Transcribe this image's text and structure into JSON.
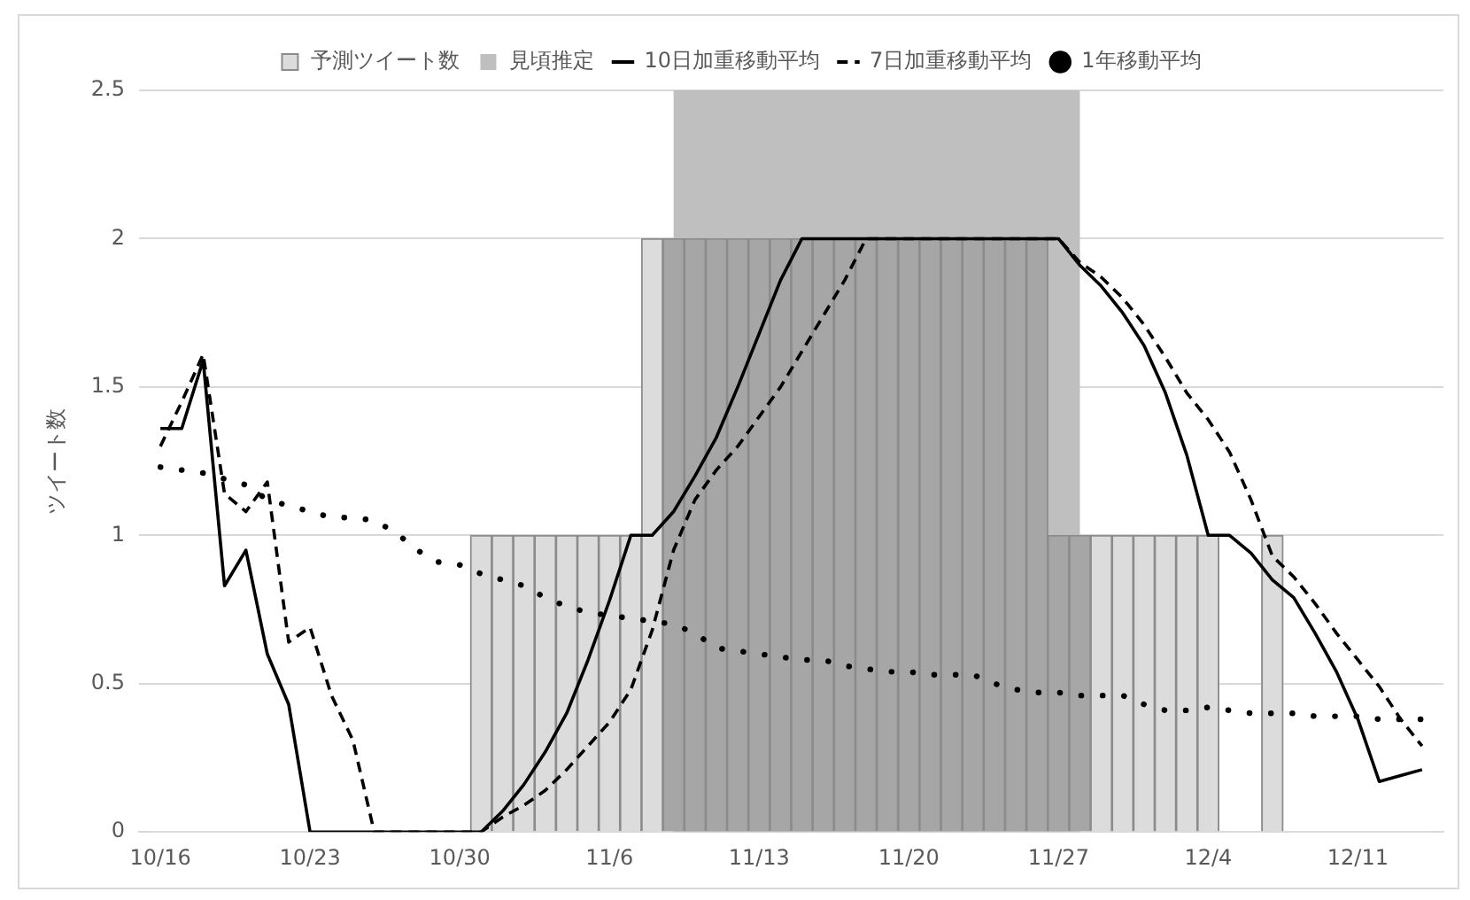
{
  "chart_data": {
    "type": "bar",
    "ylabel": "ツイート数",
    "x": [
      "--10-16",
      "--10-17",
      "--10-18",
      "--10-19",
      "--10-20",
      "--10-21",
      "--10-22",
      "--10-23",
      "--10-24",
      "--10-25",
      "--10-26",
      "--10-27",
      "--10-28",
      "--10-29",
      "--10-30",
      "--10-31",
      "--11-01",
      "--11-02",
      "--11-03",
      "--11-04",
      "--11-05",
      "--11-06",
      "--11-07",
      "--11-08",
      "--11-09",
      "--11-10",
      "--11-11",
      "--11-12",
      "--11-13",
      "--11-14",
      "--11-15",
      "--11-16",
      "--11-17",
      "--11-18",
      "--11-19",
      "--11-20",
      "--11-21",
      "--11-22",
      "--11-23",
      "--11-24",
      "--11-25",
      "--11-26",
      "--11-27",
      "--11-28",
      "--11-29",
      "--11-30",
      "--12-01",
      "--12-02",
      "--12-03",
      "--12-04",
      "--12-05",
      "--12-06",
      "--12-07",
      "--12-08",
      "--12-09",
      "--12-10",
      "--12-11",
      "--12-12",
      "--12-13",
      "--12-14"
    ],
    "xlim": [
      "--10-15",
      "--12-15"
    ],
    "xticks": [
      {
        "value": "--10-16",
        "label": "10/16"
      },
      {
        "value": "--10-23",
        "label": "10/23"
      },
      {
        "value": "--10-30",
        "label": "10/30"
      },
      {
        "value": "--11-06",
        "label": "11/6"
      },
      {
        "value": "--11-13",
        "label": "11/13"
      },
      {
        "value": "--11-20",
        "label": "11/20"
      },
      {
        "value": "--11-27",
        "label": "11/27"
      },
      {
        "value": "--12-04",
        "label": "12/4"
      },
      {
        "value": "--12-11",
        "label": "12/11"
      }
    ],
    "series": [
      {
        "name": "予測ツイート数",
        "colors": [
          "#dcdcdc",
          "#dcdcdc",
          "#dcdcdc",
          "#dcdcdc",
          "#dcdcdc",
          "#dcdcdc",
          "#dcdcdc",
          "#dcdcdc",
          "#dcdcdc",
          "#dcdcdc",
          "#dcdcdc",
          "#dcdcdc",
          "#dcdcdc",
          "#dcdcdc",
          "#dcdcdc",
          "#dcdcdc",
          "#dcdcdc",
          "#dcdcdc",
          "#dcdcdc",
          "#dcdcdc",
          "#dcdcdc",
          "#dcdcdc",
          "#dcdcdc",
          "#dcdcdc",
          "#a6a6a6",
          "#a6a6a6",
          "#a6a6a6",
          "#a6a6a6",
          "#a6a6a6",
          "#a6a6a6",
          "#a6a6a6",
          "#a6a6a6",
          "#a6a6a6",
          "#a6a6a6",
          "#a6a6a6",
          "#a6a6a6",
          "#a6a6a6",
          "#a6a6a6",
          "#a6a6a6",
          "#a6a6a6",
          "#a6a6a6",
          "#a6a6a6",
          "#a6a6a6",
          "#a6a6a6",
          "#dcdcdc",
          "#dcdcdc",
          "#dcdcdc",
          "#dcdcdc",
          "#dcdcdc",
          "#dcdcdc",
          "#dcdcdc",
          "#dcdcdc",
          "#dcdcdc",
          "#dcdcdc",
          "#dcdcdc",
          "#dcdcdc",
          "#dcdcdc",
          "#dcdcdc",
          "#dcdcdc",
          "#dcdcdc"
        ],
        "values": [
          0,
          0,
          0,
          0,
          0,
          0,
          0,
          0,
          0,
          0,
          0,
          0,
          0,
          0,
          0,
          1,
          1,
          1,
          1,
          1,
          1,
          1,
          1,
          2,
          2,
          2,
          2,
          2,
          2,
          2,
          2,
          2,
          2,
          2,
          2,
          2,
          2,
          2,
          2,
          2,
          2,
          2,
          1,
          1,
          1,
          1,
          1,
          1,
          1,
          1,
          0,
          0,
          1,
          0,
          0,
          0,
          0,
          0,
          0,
          0
        ]
      },
      {
        "name": "10日加重移動平均",
        "type": "line",
        "color": "#000000",
        "line_style": "solid",
        "values": [
          1.36,
          1.36,
          1.59,
          0.83,
          0.95,
          0.6,
          0.43,
          0,
          0,
          0,
          0,
          0,
          0,
          0,
          0,
          0,
          0.07,
          0.16,
          0.27,
          0.4,
          0.58,
          0.78,
          1.0,
          1.0,
          1.08,
          1.2,
          1.33,
          1.5,
          1.68,
          1.86,
          2.0,
          2.0,
          2.0,
          2.0,
          2.0,
          2.0,
          2.0,
          2.0,
          2.0,
          2.0,
          2.0,
          2.0,
          2.0,
          1.91,
          1.84,
          1.75,
          1.64,
          1.48,
          1.27,
          1.0,
          1.0,
          0.94,
          0.85,
          0.79,
          0.67,
          0.54,
          0.38,
          0.17,
          0.19,
          0.21
        ]
      },
      {
        "name": "7日加重移動平均",
        "type": "line",
        "color": "#000000",
        "line_style": "dashed",
        "values": [
          1.3,
          1.45,
          1.61,
          1.14,
          1.08,
          1.18,
          0.64,
          0.69,
          0.46,
          0.31,
          0,
          0,
          0,
          0,
          0,
          0,
          0.05,
          0.09,
          0.14,
          0.21,
          0.29,
          0.37,
          0.48,
          0.68,
          0.95,
          1.12,
          1.22,
          1.3,
          1.4,
          1.5,
          1.62,
          1.74,
          1.86,
          2.0,
          2.0,
          2.0,
          2.0,
          2.0,
          2.0,
          2.0,
          2.0,
          2.0,
          2.0,
          1.92,
          1.87,
          1.8,
          1.71,
          1.6,
          1.48,
          1.39,
          1.28,
          1.12,
          0.93,
          0.86,
          0.77,
          0.67,
          0.58,
          0.49,
          0.38,
          0.29
        ]
      },
      {
        "name": "1年移動平均",
        "type": "line",
        "color": "#000000",
        "line_style": "dotted",
        "values": [
          1.23,
          1.22,
          1.21,
          1.19,
          1.17,
          1.12,
          1.1,
          1.08,
          1.06,
          1.06,
          1.05,
          1.01,
          0.95,
          0.91,
          0.9,
          0.87,
          0.85,
          0.83,
          0.79,
          0.76,
          0.74,
          0.73,
          0.72,
          0.71,
          0.7,
          0.67,
          0.62,
          0.61,
          0.6,
          0.59,
          0.58,
          0.58,
          0.56,
          0.55,
          0.54,
          0.54,
          0.53,
          0.53,
          0.53,
          0.5,
          0.48,
          0.47,
          0.47,
          0.46,
          0.46,
          0.46,
          0.43,
          0.41,
          0.41,
          0.42,
          0.41,
          0.4,
          0.4,
          0.4,
          0.39,
          0.39,
          0.39,
          0.38,
          0.38,
          0.38
        ]
      }
    ],
    "bands": [
      {
        "axis": "x",
        "from": "--11-09",
        "to": "--11-28",
        "label": "見頃推定",
        "color": "#bfbfbf"
      }
    ],
    "ylim": [
      0,
      2.5
    ],
    "yticks": [
      0,
      0.5,
      1,
      1.5,
      2,
      2.5
    ],
    "grid": "y",
    "legend": "top",
    "marker": "none"
  }
}
